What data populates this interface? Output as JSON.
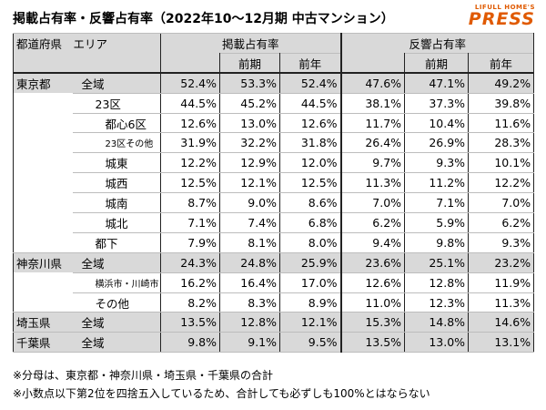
{
  "title": "掲載占有率・反響占有率（2022年10～12月期 中古マンション）",
  "brand": {
    "top": "LIFULL HOME'S",
    "main": "PRESS"
  },
  "header": {
    "pref_area": "都道府県　エリア",
    "group1": "掲載占有率",
    "group2": "反響占有率",
    "sub_prev_q": "前期",
    "sub_prev_y": "前年"
  },
  "rows": [
    {
      "pref": "東京都",
      "area": "全域",
      "indent": 0,
      "vals": [
        "52.4%",
        "53.3%",
        "52.4%",
        "47.6%",
        "47.1%",
        "49.2%"
      ]
    },
    {
      "pref": "",
      "area": "23区",
      "indent": 1,
      "vals": [
        "44.5%",
        "45.2%",
        "44.5%",
        "38.1%",
        "37.3%",
        "39.8%"
      ]
    },
    {
      "pref": "",
      "area": "都心6区",
      "indent": 2,
      "vals": [
        "12.6%",
        "13.0%",
        "12.6%",
        "11.7%",
        "10.4%",
        "11.6%"
      ]
    },
    {
      "pref": "",
      "area": "23区その他",
      "indent": 2,
      "small": true,
      "vals": [
        "31.9%",
        "32.2%",
        "31.8%",
        "26.4%",
        "26.9%",
        "28.3%"
      ]
    },
    {
      "pref": "",
      "area": "城東",
      "indent": 2,
      "vals": [
        "12.2%",
        "12.9%",
        "12.0%",
        "9.7%",
        "9.3%",
        "10.1%"
      ]
    },
    {
      "pref": "",
      "area": "城西",
      "indent": 2,
      "vals": [
        "12.5%",
        "12.1%",
        "12.5%",
        "11.3%",
        "11.2%",
        "12.2%"
      ]
    },
    {
      "pref": "",
      "area": "城南",
      "indent": 2,
      "vals": [
        "8.7%",
        "9.0%",
        "8.6%",
        "7.0%",
        "7.1%",
        "7.0%"
      ]
    },
    {
      "pref": "",
      "area": "城北",
      "indent": 2,
      "vals": [
        "7.1%",
        "7.4%",
        "6.8%",
        "6.2%",
        "5.9%",
        "6.2%"
      ]
    },
    {
      "pref": "",
      "area": "都下",
      "indent": 1,
      "vals": [
        "7.9%",
        "8.1%",
        "8.0%",
        "9.4%",
        "9.8%",
        "9.3%"
      ]
    },
    {
      "pref": "神奈川県",
      "area": "全域",
      "indent": 0,
      "vals": [
        "24.3%",
        "24.8%",
        "25.9%",
        "23.6%",
        "25.1%",
        "23.2%"
      ]
    },
    {
      "pref": "",
      "area": "横浜市・川崎市",
      "indent": 1,
      "small": true,
      "vals": [
        "16.2%",
        "16.4%",
        "17.0%",
        "12.6%",
        "12.8%",
        "11.9%"
      ]
    },
    {
      "pref": "",
      "area": "その他",
      "indent": 1,
      "vals": [
        "8.2%",
        "8.3%",
        "8.9%",
        "11.0%",
        "12.3%",
        "11.3%"
      ]
    },
    {
      "pref": "埼玉県",
      "area": "全域",
      "indent": 0,
      "vals": [
        "13.5%",
        "12.8%",
        "12.1%",
        "15.3%",
        "14.8%",
        "14.6%"
      ]
    },
    {
      "pref": "千葉県",
      "area": "全域",
      "indent": 0,
      "vals": [
        "9.8%",
        "9.1%",
        "9.5%",
        "13.5%",
        "13.0%",
        "13.1%"
      ]
    }
  ],
  "notes": [
    "※分母は、東京都・神奈川県・埼玉県・千葉県の合計",
    "※小数点以下第2位を四捨五入しているため、合計しても必ずしも100%とはならない"
  ],
  "colors": {
    "header_bg": "#d9d9d9",
    "brand": "#e05a00"
  }
}
